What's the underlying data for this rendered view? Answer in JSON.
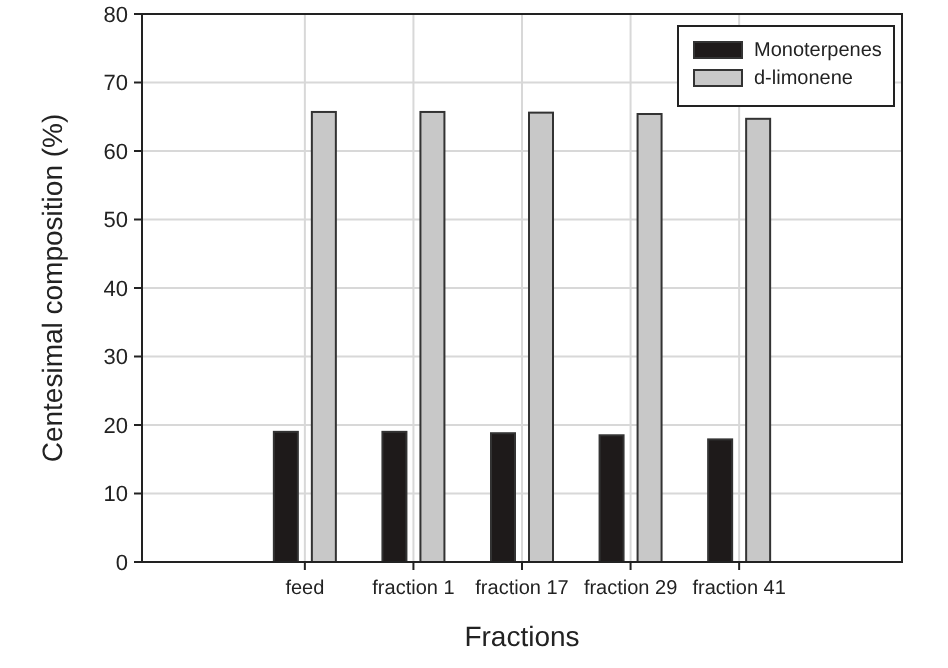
{
  "chart_data": {
    "type": "bar",
    "xlabel": "Fractions",
    "ylabel": "Centesimal composition (%)",
    "categories": [
      null,
      "feed",
      "fraction 1",
      "fraction 17",
      "fraction 29",
      "fraction 41",
      null
    ],
    "series": [
      {
        "name": "Monoterpenes",
        "color": "#1e1a1a",
        "values": [
          null,
          19.0,
          19.0,
          18.8,
          18.5,
          17.9,
          null
        ]
      },
      {
        "name": "d-limonene",
        "color": "#c8c8c8",
        "values": [
          null,
          65.7,
          65.7,
          65.6,
          65.4,
          64.7,
          null
        ]
      }
    ],
    "ylim": [
      0,
      80
    ],
    "yticks": [
      0,
      10,
      20,
      30,
      40,
      50,
      60,
      70,
      80
    ],
    "grid": true,
    "legend": "top right"
  }
}
